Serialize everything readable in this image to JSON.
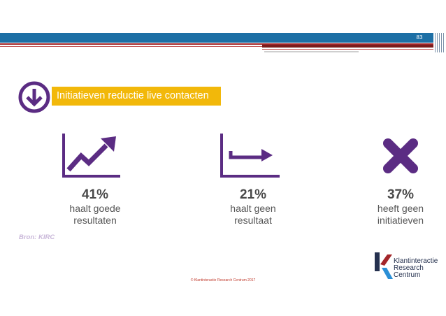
{
  "header": {
    "page_number": "83"
  },
  "title": {
    "text": "Initiatieven reductie live contacten",
    "icon": "arrow-down-circle-icon"
  },
  "colors": {
    "purple": "#5b2c83",
    "yellow": "#f2b80a",
    "blue": "#1d6fa5",
    "red": "#a3262a"
  },
  "stats": [
    {
      "percent": "41%",
      "line1": "haalt goede",
      "line2": "resultaten",
      "icon": "trend-up-chart-icon"
    },
    {
      "percent": "21%",
      "line1": "haalt geen",
      "line2": "resultaat",
      "icon": "flat-arrow-chart-icon"
    },
    {
      "percent": "37%",
      "line1": "heeft geen",
      "line2": "initiatieven",
      "icon": "x-icon"
    }
  ],
  "source": "Bron: KIRC",
  "logo": {
    "line1": "Klantinteractie",
    "line2": "Research",
    "line3": "Centrum"
  },
  "footer": "© Klantinteractie Research Centrum 2017"
}
